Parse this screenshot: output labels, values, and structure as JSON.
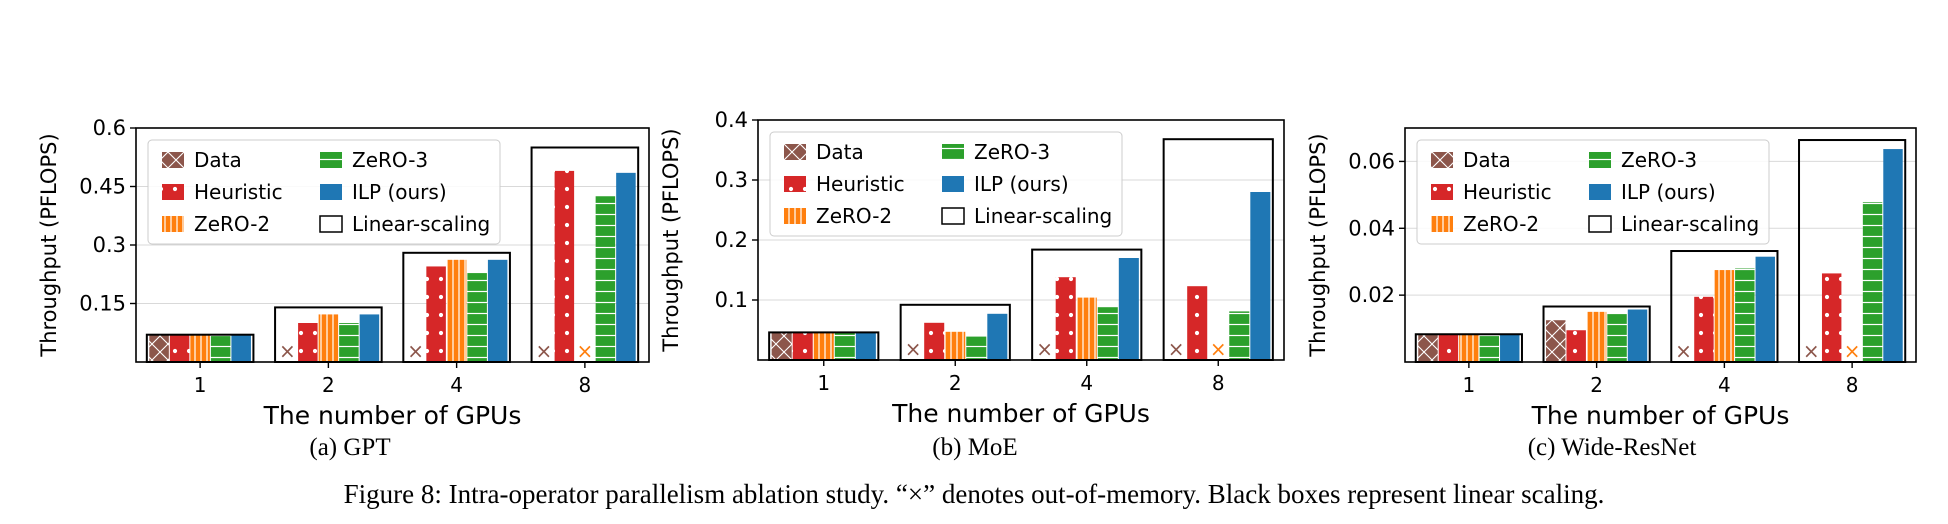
{
  "figure": {
    "caption": "Figure 8: Intra-operator parallelism ablation study. “×” denotes out-of-memory. Black boxes represent linear scaling."
  },
  "legend": {
    "labels": [
      "Data",
      "Heuristic",
      "ZeRO-2",
      "ZeRO-3",
      "ILP (ours)",
      "Linear-scaling"
    ]
  },
  "oom_marker": "×",
  "colors": {
    "Data": "#8c564b",
    "Heuristic": "#d62728",
    "ZeRO-2": "#ff7f0e",
    "ZeRO-3": "#2ca02c",
    "ILP (ours)": "#1f77b4",
    "Linear-scaling": "#000000"
  },
  "chart_data": [
    {
      "type": "bar",
      "subtitle": "(a) GPT",
      "xlabel": "The number of GPUs",
      "ylabel": "Throughput (PFLOPS)",
      "categories": [
        "1",
        "2",
        "4",
        "8"
      ],
      "ylim": [
        0,
        0.6
      ],
      "yticks": [
        0.15,
        0.3,
        0.45,
        0.6
      ],
      "ytick_labels": [
        "0.15",
        "0.3",
        "0.45",
        "0.6"
      ],
      "grid": true,
      "legend_position": "upper-left",
      "series": [
        {
          "name": "Data",
          "values": [
            0.07,
            null,
            null,
            null
          ]
        },
        {
          "name": "Heuristic",
          "values": [
            0.07,
            0.1,
            0.245,
            0.49
          ]
        },
        {
          "name": "ZeRO-2",
          "values": [
            0.07,
            0.122,
            0.262,
            null
          ]
        },
        {
          "name": "ZeRO-3",
          "values": [
            0.07,
            0.1,
            0.228,
            0.425
          ]
        },
        {
          "name": "ILP (ours)",
          "values": [
            0.07,
            0.122,
            0.262,
            0.485
          ]
        }
      ],
      "linear_scaling": [
        0.07,
        0.14,
        0.28,
        0.55
      ],
      "oom": {
        "Data": [
          "2",
          "4",
          "8"
        ],
        "ZeRO-2": [
          "8"
        ]
      }
    },
    {
      "type": "bar",
      "subtitle": "(b) MoE",
      "xlabel": "The number of GPUs",
      "ylabel": "Throughput (PFLOPS)",
      "categories": [
        "1",
        "2",
        "4",
        "8"
      ],
      "ylim": [
        0,
        0.4
      ],
      "yticks": [
        0.1,
        0.2,
        0.3,
        0.4
      ],
      "ytick_labels": [
        "0.1",
        "0.2",
        "0.3",
        "0.4"
      ],
      "grid": true,
      "legend_position": "upper-left",
      "series": [
        {
          "name": "Data",
          "values": [
            0.046,
            null,
            null,
            null
          ]
        },
        {
          "name": "Heuristic",
          "values": [
            0.046,
            0.062,
            0.138,
            0.123
          ]
        },
        {
          "name": "ZeRO-2",
          "values": [
            0.046,
            0.047,
            0.104,
            null
          ]
        },
        {
          "name": "ZeRO-3",
          "values": [
            0.046,
            0.039,
            0.088,
            0.081
          ]
        },
        {
          "name": "ILP (ours)",
          "values": [
            0.046,
            0.077,
            0.17,
            0.28
          ]
        }
      ],
      "linear_scaling": [
        0.046,
        0.092,
        0.184,
        0.368
      ],
      "oom": {
        "Data": [
          "2",
          "4",
          "8"
        ],
        "ZeRO-2": [
          "8"
        ]
      }
    },
    {
      "type": "bar",
      "subtitle": "(c) Wide-ResNet",
      "xlabel": "The number of GPUs",
      "ylabel": "Throughput (PFLOPS)",
      "categories": [
        "1",
        "2",
        "4",
        "8"
      ],
      "ylim": [
        0,
        0.07
      ],
      "yticks": [
        0.02,
        0.04,
        0.06
      ],
      "ytick_labels": [
        "0.02",
        "0.04",
        "0.06"
      ],
      "grid": true,
      "legend_position": "upper-left",
      "series": [
        {
          "name": "Data",
          "values": [
            0.0083,
            0.0125,
            null,
            null
          ]
        },
        {
          "name": "Heuristic",
          "values": [
            0.0083,
            0.0095,
            0.0195,
            0.0265
          ]
        },
        {
          "name": "ZeRO-2",
          "values": [
            0.0083,
            0.015,
            0.0275,
            null
          ]
        },
        {
          "name": "ZeRO-3",
          "values": [
            0.0083,
            0.0145,
            0.028,
            0.0478
          ]
        },
        {
          "name": "ILP (ours)",
          "values": [
            0.0083,
            0.0157,
            0.0315,
            0.0637
          ]
        }
      ],
      "linear_scaling": [
        0.0083,
        0.0166,
        0.0332,
        0.0664
      ],
      "oom": {
        "Data": [
          "4",
          "8"
        ],
        "ZeRO-2": [
          "8"
        ]
      }
    }
  ]
}
